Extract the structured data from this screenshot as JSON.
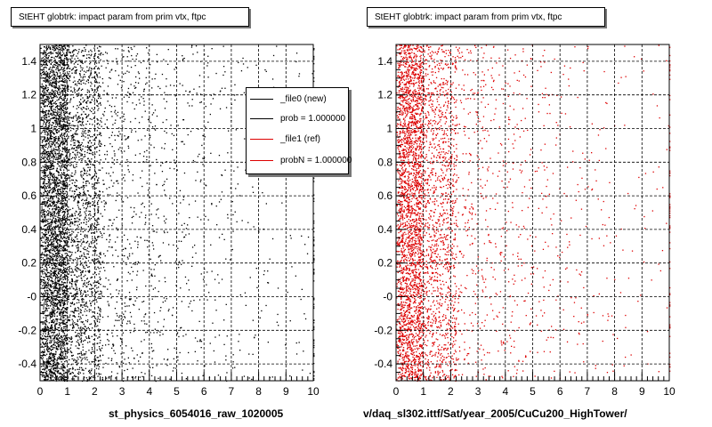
{
  "colors": {
    "new": "#000000",
    "ref": "#dd0000",
    "grid": "#000000"
  },
  "chart_data": [
    {
      "type": "scatter",
      "title": "StEHT globtrk: impact param from prim vtx, ftpc",
      "xlim": [
        0,
        10
      ],
      "ylim": [
        -0.5,
        1.5
      ],
      "xticks": [
        "0",
        "1",
        "2",
        "3",
        "4",
        "5",
        "6",
        "7",
        "8",
        "9",
        "10"
      ],
      "yticks": [
        "-0.4",
        "-0.2",
        "-0",
        "0.2",
        "0.4",
        "0.6",
        "0.8",
        "1",
        "1.2",
        "1.4"
      ],
      "grid": true,
      "series": [
        {
          "name": "_file0 (new)",
          "color": "#000000",
          "distribution": "dense near x=0-1, decreasing with x, uniform in y"
        }
      ],
      "legend": {
        "position": "top-right",
        "entries": [
          {
            "label": "_file0 (new)",
            "color": "#000000"
          },
          {
            "label": "prob = 1.000000",
            "color": "#000000"
          },
          {
            "label": "_file1 (ref)",
            "color": "#dd0000"
          },
          {
            "label": "probN = 1.000000",
            "color": "#dd0000"
          }
        ]
      },
      "footer": "st_physics_6054016_raw_1020005"
    },
    {
      "type": "scatter",
      "title": "StEHT globtrk: impact param from prim vtx, ftpc",
      "xlim": [
        0,
        10
      ],
      "ylim": [
        -0.5,
        1.5
      ],
      "xticks": [
        "0",
        "1",
        "2",
        "3",
        "4",
        "5",
        "6",
        "7",
        "8",
        "9",
        "10"
      ],
      "yticks": [
        "-0.4",
        "-0.2",
        "-0",
        "0.2",
        "0.4",
        "0.6",
        "0.8",
        "1",
        "1.2",
        "1.4"
      ],
      "grid": true,
      "series": [
        {
          "name": "_file1 (ref)",
          "color": "#dd0000",
          "distribution": "dense near x=0-1, decreasing with x, uniform in y"
        }
      ],
      "footer": "v/daq_sl302.ittf/Sat/year_2005/CuCu200_HighTower/"
    }
  ]
}
